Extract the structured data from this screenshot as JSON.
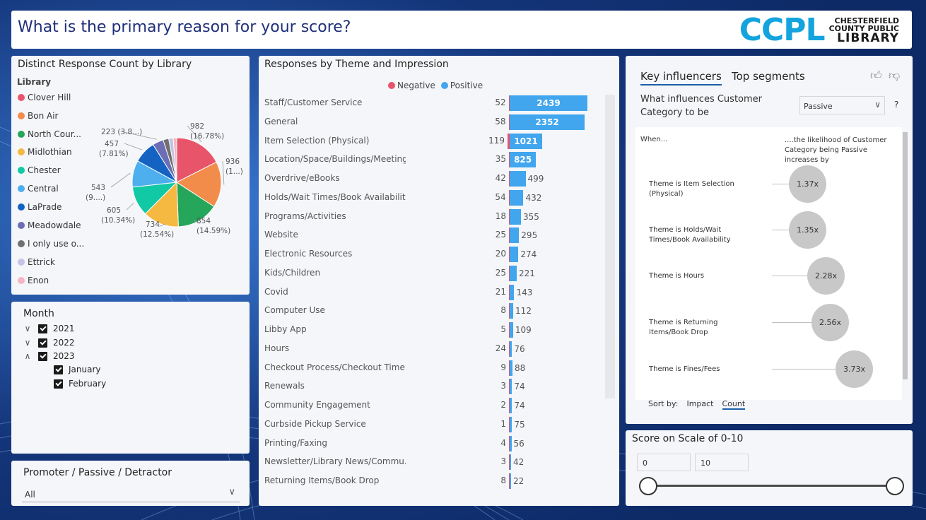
{
  "header": {
    "title": "What is the primary reason for your score?",
    "logo": {
      "text": "CCPL",
      "line1": "CHESTERFIELD",
      "line2": "COUNTY PUBLIC",
      "line3": "LIBRARY"
    }
  },
  "pie_panel": {
    "title": "Distinct Response Count by Library",
    "legend_title": "Library"
  },
  "month_slicer": {
    "title": "Month",
    "years": [
      {
        "label": "2021",
        "expanded": false,
        "checked": true
      },
      {
        "label": "2022",
        "expanded": false,
        "checked": true
      },
      {
        "label": "2023",
        "expanded": true,
        "checked": true
      }
    ],
    "months": [
      {
        "label": "January",
        "checked": true
      },
      {
        "label": "February",
        "checked": true
      }
    ]
  },
  "promoter": {
    "title": "Promoter / Passive / Detractor",
    "selected": "All"
  },
  "bar_panel": {
    "title": "Responses by Theme and Impression",
    "legend": {
      "negative": "Negative",
      "positive": "Positive"
    }
  },
  "key_influencers": {
    "tab_active": "Key influencers",
    "tab_other": "Top segments",
    "question_line1": "What influences Customer",
    "question_line2": "Category to be",
    "selected": "Passive",
    "help": "?",
    "when": "When...",
    "likelihood": "....the likelihood of Customer Category being Passive increases by",
    "items": [
      {
        "label": "Theme is Item Selection (Physical)",
        "value": "1.37x",
        "factor": 1.37
      },
      {
        "label": "Theme is Holds/Wait Times/Book Availability",
        "value": "1.35x",
        "factor": 1.35
      },
      {
        "label": "Theme is Hours",
        "value": "2.28x",
        "factor": 2.28
      },
      {
        "label": "Theme is Returning Items/Book Drop",
        "value": "2.56x",
        "factor": 2.56
      },
      {
        "label": "Theme is Fines/Fees",
        "value": "3.73x",
        "factor": 3.73
      }
    ],
    "sort_label": "Sort by:",
    "sort_impact": "Impact",
    "sort_count": "Count"
  },
  "score": {
    "title": "Score on Scale of 0-10",
    "min": "0",
    "max": "10"
  },
  "colors": {
    "negative": "#e8546a",
    "positive": "#41a6ee",
    "title_blue": "#1f2f7a",
    "logo_blue": "#13a4dd"
  },
  "chart_data": [
    {
      "type": "pie",
      "title": "Distinct Response Count by Library",
      "slices": [
        {
          "name": "Clover Hill",
          "value": 982,
          "label": "982",
          "pct_label": "(16.78%)",
          "color": "#e8546a"
        },
        {
          "name": "Bon Air",
          "value": 936,
          "label": "936",
          "pct_label": "(1...)",
          "color": "#f28c4b"
        },
        {
          "name": "North Cour...",
          "value": 854,
          "label": "854",
          "pct_label": "(14.59%)",
          "color": "#26a65b"
        },
        {
          "name": "Midlothian",
          "value": 734,
          "label": "734",
          "pct_label": "(12.54%)",
          "color": "#f5b841"
        },
        {
          "name": "Chester",
          "value": 605,
          "label": "605",
          "pct_label": "(10.34%)",
          "color": "#12c9a5"
        },
        {
          "name": "Central",
          "value": 543,
          "label": "543",
          "pct_label": "(9....)",
          "color": "#4dafee"
        },
        {
          "name": "LaPrade",
          "value": 457,
          "label": "457",
          "pct_label": "(7.81%)",
          "color": "#1463c2"
        },
        {
          "name": "Meadowdale",
          "value": 223,
          "label": "223",
          "pct_label": "(3.8...)",
          "color": "#6c6db5"
        },
        {
          "name": "I only use o...",
          "value": 115,
          "label": "",
          "pct_label": "",
          "color": "#707070"
        },
        {
          "name": "Ettrick",
          "value": 90,
          "label": "",
          "pct_label": "",
          "color": "#c5c3e6"
        },
        {
          "name": "Enon",
          "value": 72,
          "label": "",
          "pct_label": "",
          "color": "#f4b6c2"
        }
      ]
    },
    {
      "type": "bar",
      "title": "Responses by Theme and Impression",
      "categories": [
        "Staff/Customer Service",
        "General",
        "Item Selection (Physical)",
        "Location/Space/Buildings/Meeting...",
        "Overdrive/eBooks",
        "Holds/Wait Times/Book Availability",
        "Programs/Activities",
        "Website",
        "Electronic Resources",
        "Kids/Children",
        "Covid",
        "Computer Use",
        "Libby App",
        "Hours",
        "Checkout Process/Checkout Time",
        "Renewals",
        "Community Engagement",
        "Curbside Pickup Service",
        "Printing/Faxing",
        "Newsletter/Library News/Commu...",
        "Returning Items/Book Drop"
      ],
      "series": [
        {
          "name": "Negative",
          "values": [
            52,
            58,
            119,
            35,
            42,
            54,
            18,
            25,
            20,
            25,
            21,
            8,
            5,
            24,
            9,
            3,
            2,
            1,
            4,
            3,
            8
          ]
        },
        {
          "name": "Positive",
          "values": [
            2439,
            2352,
            1021,
            825,
            499,
            432,
            355,
            295,
            274,
            221,
            143,
            112,
            109,
            76,
            88,
            74,
            74,
            75,
            56,
            42,
            22
          ]
        }
      ]
    }
  ]
}
